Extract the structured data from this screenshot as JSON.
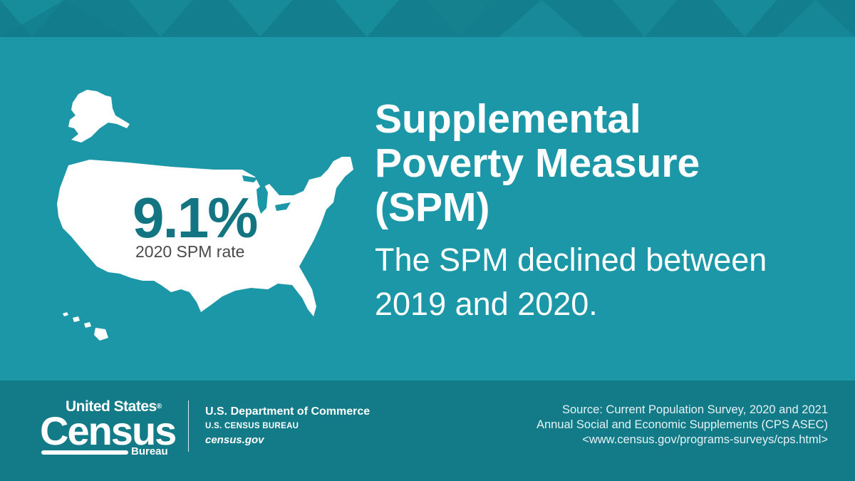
{
  "colors": {
    "top_band": "#137f8e",
    "main_background": "#1c97a8",
    "footer_background": "#137a88",
    "map_fill": "#ffffff",
    "stat_value": "#137482",
    "stat_label": "#4a4a4a",
    "text": "#ffffff"
  },
  "map": {
    "icon": "us-map-icon"
  },
  "stat": {
    "value": "9.1%",
    "label": "2020 SPM rate"
  },
  "headline": {
    "line1": "Supplemental",
    "line2": "Poverty Measure",
    "line3": "(SPM)"
  },
  "subhead": {
    "line1": "The SPM declined between",
    "line2": "2019 and 2020."
  },
  "footer": {
    "logo": {
      "line1": "United States",
      "registered": "®",
      "line2": "Census",
      "line3": "Bureau"
    },
    "department": {
      "name": "U.S. Department of Commerce",
      "bureau": "U.S. CENSUS BUREAU",
      "website": "census.gov"
    },
    "source": {
      "line1": "Source: Current Population Survey, 2020 and 2021",
      "line2": "Annual Social and Economic Supplements (CPS ASEC)",
      "line3": "<www.census.gov/programs-surveys/cps.html>"
    }
  }
}
